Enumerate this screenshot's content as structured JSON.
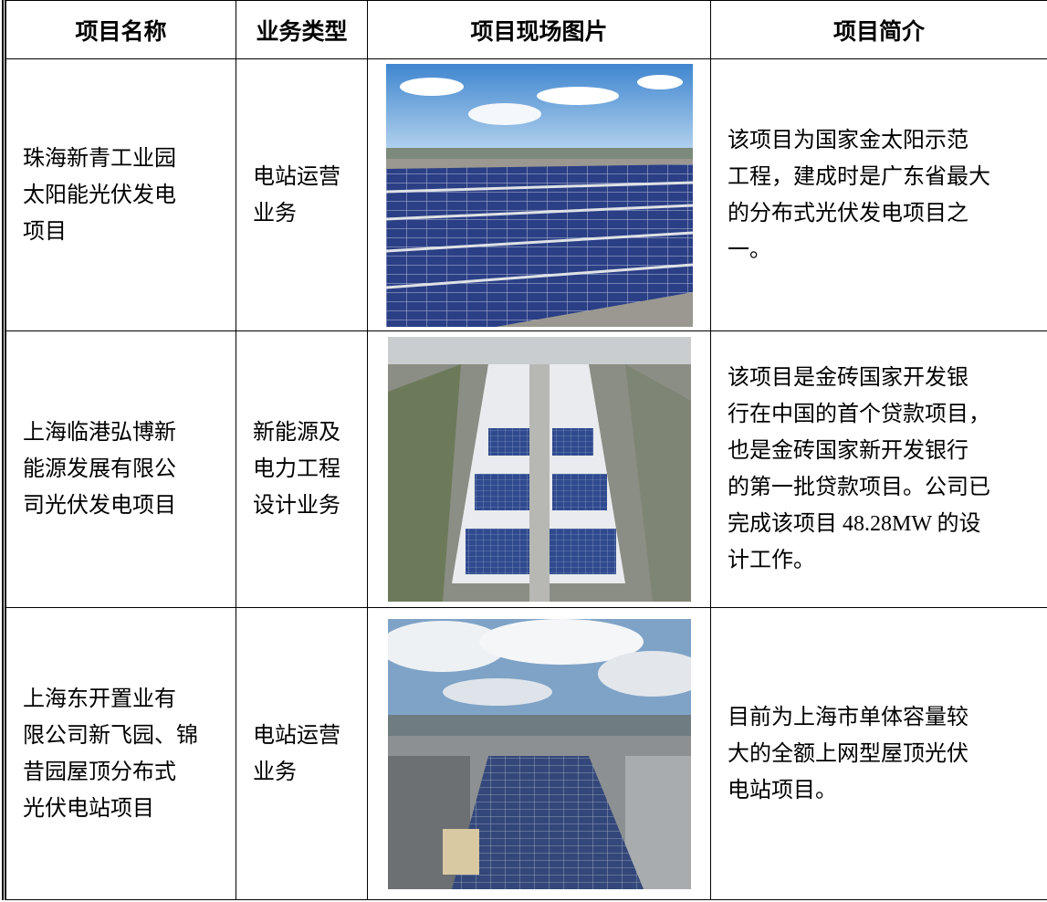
{
  "table": {
    "headers": [
      "项目名称",
      "业务类型",
      "项目现场图片",
      "项目简介"
    ],
    "rows": [
      {
        "name": [
          "珠海新青工业园",
          "太阳能光伏发电",
          "项目"
        ],
        "type": [
          "电站运营",
          "业务"
        ],
        "intro": [
          "该项目为国家金太阳示范",
          "工程，建成时是广东省最大",
          "的分布式光伏发电项目之",
          "一。"
        ]
      },
      {
        "name": [
          "上海临港弘博新",
          "能源发展有限公",
          "司光伏发电项目"
        ],
        "type": [
          "新能源及",
          "电力工程",
          "设计业务"
        ],
        "intro": [
          "该项目是金砖国家开发银",
          "行在中国的首个贷款项目，",
          "也是金砖国家新开发银行",
          "的第一批贷款项目。公司已",
          "完成该项目 48.28MW 的设",
          "计工作。"
        ]
      },
      {
        "name": [
          "上海东开置业有",
          "限公司新飞园、锦",
          "昔园屋顶分布式",
          "光伏电站项目"
        ],
        "type": [
          "电站运营",
          "业务"
        ],
        "intro": [
          "目前为上海市单体容量较",
          "大的全额上网型屋顶光伏",
          "电站项目。"
        ]
      }
    ]
  }
}
